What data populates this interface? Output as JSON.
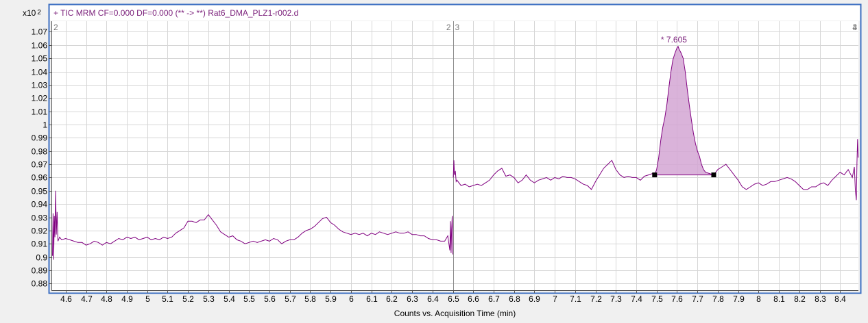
{
  "chart_data": {
    "type": "line",
    "title": "+ TIC MRM CF=0.000 DF=0.000 (** -> **) Rat6_DMA_PLZ1-r002.d",
    "xlabel": "Counts vs. Acquisition Time (min)",
    "y_multiplier": "x10",
    "y_multiplier_exp": "2",
    "xlim": [
      4.53,
      8.49
    ],
    "ylim": [
      0.875,
      1.078
    ],
    "x_ticks": [
      4.6,
      4.7,
      4.8,
      4.9,
      5.0,
      5.1,
      5.2,
      5.3,
      5.4,
      5.5,
      5.6,
      5.7,
      5.8,
      5.9,
      6.0,
      6.1,
      6.2,
      6.3,
      6.4,
      6.5,
      6.6,
      6.7,
      6.8,
      6.9,
      7.0,
      7.1,
      7.2,
      7.3,
      7.4,
      7.5,
      7.6,
      7.7,
      7.8,
      7.9,
      8.0,
      8.1,
      8.2,
      8.3,
      8.4
    ],
    "x_tick_labels": [
      "4.6",
      "4.7",
      "4.8",
      "4.9",
      "5",
      "5.1",
      "5.2",
      "5.3",
      "5.4",
      "5.5",
      "5.6",
      "5.7",
      "5.8",
      "5.9",
      "6",
      "6.1",
      "6.2",
      "6.3",
      "6.4",
      "6.5",
      "6.6",
      "6.7",
      "6.8",
      "6.9",
      "7",
      "7.1",
      "7.2",
      "7.3",
      "7.4",
      "7.5",
      "7.6",
      "7.7",
      "7.8",
      "7.9",
      "8",
      "8.1",
      "8.2",
      "8.3",
      "8.4"
    ],
    "y_ticks": [
      0.88,
      0.89,
      0.9,
      0.91,
      0.92,
      0.93,
      0.94,
      0.95,
      0.96,
      0.97,
      0.98,
      0.99,
      1.0,
      1.01,
      1.02,
      1.03,
      1.04,
      1.05,
      1.06,
      1.07
    ],
    "y_tick_labels": [
      "0.88",
      "0.89",
      "0.9",
      "0.91",
      "0.92",
      "0.93",
      "0.94",
      "0.95",
      "0.96",
      "0.97",
      "0.98",
      "0.99",
      "1",
      "1.01",
      "1.02",
      "1.03",
      "1.04",
      "1.05",
      "1.06",
      "1.07"
    ],
    "grid": true,
    "segment_divider_x": 6.5,
    "segment_markers": [
      {
        "x": 4.53,
        "label": "2"
      },
      {
        "x": 6.5,
        "label": "2",
        "side": "left"
      },
      {
        "x": 6.5,
        "label": "3",
        "side": "right"
      },
      {
        "x": 8.49,
        "label": "3"
      },
      {
        "x": 8.49,
        "label": "4"
      }
    ],
    "peak": {
      "label": "* 7.605",
      "apex_x": 7.605,
      "apex_y": 1.059,
      "start_x": 7.49,
      "start_y": 0.962,
      "end_x": 7.78,
      "end_y": 0.962
    },
    "series": [
      {
        "color": "#800080",
        "fill": "#d4a6d4",
        "points": [
          [
            4.535,
            0.901
          ],
          [
            4.538,
            0.933
          ],
          [
            4.541,
            0.898
          ],
          [
            4.544,
            0.931
          ],
          [
            4.547,
            0.915
          ],
          [
            4.551,
            0.95
          ],
          [
            4.554,
            0.917
          ],
          [
            4.558,
            0.934
          ],
          [
            4.562,
            0.912
          ],
          [
            4.57,
            0.915
          ],
          [
            4.58,
            0.913
          ],
          [
            4.6,
            0.914
          ],
          [
            4.62,
            0.913
          ],
          [
            4.64,
            0.912
          ],
          [
            4.66,
            0.911
          ],
          [
            4.68,
            0.911
          ],
          [
            4.7,
            0.909
          ],
          [
            4.72,
            0.91
          ],
          [
            4.74,
            0.912
          ],
          [
            4.76,
            0.911
          ],
          [
            4.78,
            0.909
          ],
          [
            4.8,
            0.911
          ],
          [
            4.82,
            0.91
          ],
          [
            4.84,
            0.912
          ],
          [
            4.86,
            0.914
          ],
          [
            4.88,
            0.913
          ],
          [
            4.9,
            0.915
          ],
          [
            4.92,
            0.914
          ],
          [
            4.94,
            0.915
          ],
          [
            4.96,
            0.913
          ],
          [
            4.98,
            0.914
          ],
          [
            5.0,
            0.915
          ],
          [
            5.02,
            0.913
          ],
          [
            5.04,
            0.914
          ],
          [
            5.06,
            0.913
          ],
          [
            5.08,
            0.915
          ],
          [
            5.1,
            0.914
          ],
          [
            5.12,
            0.915
          ],
          [
            5.14,
            0.918
          ],
          [
            5.16,
            0.92
          ],
          [
            5.18,
            0.922
          ],
          [
            5.2,
            0.927
          ],
          [
            5.22,
            0.927
          ],
          [
            5.24,
            0.926
          ],
          [
            5.26,
            0.928
          ],
          [
            5.28,
            0.928
          ],
          [
            5.3,
            0.932
          ],
          [
            5.32,
            0.928
          ],
          [
            5.34,
            0.924
          ],
          [
            5.36,
            0.919
          ],
          [
            5.38,
            0.917
          ],
          [
            5.4,
            0.915
          ],
          [
            5.42,
            0.916
          ],
          [
            5.44,
            0.913
          ],
          [
            5.46,
            0.912
          ],
          [
            5.48,
            0.91
          ],
          [
            5.5,
            0.911
          ],
          [
            5.52,
            0.912
          ],
          [
            5.54,
            0.911
          ],
          [
            5.56,
            0.912
          ],
          [
            5.58,
            0.913
          ],
          [
            5.6,
            0.912
          ],
          [
            5.62,
            0.914
          ],
          [
            5.64,
            0.913
          ],
          [
            5.66,
            0.91
          ],
          [
            5.68,
            0.912
          ],
          [
            5.7,
            0.913
          ],
          [
            5.72,
            0.913
          ],
          [
            5.74,
            0.915
          ],
          [
            5.76,
            0.918
          ],
          [
            5.78,
            0.92
          ],
          [
            5.8,
            0.921
          ],
          [
            5.82,
            0.923
          ],
          [
            5.84,
            0.926
          ],
          [
            5.86,
            0.929
          ],
          [
            5.88,
            0.93
          ],
          [
            5.9,
            0.926
          ],
          [
            5.92,
            0.924
          ],
          [
            5.94,
            0.921
          ],
          [
            5.96,
            0.919
          ],
          [
            5.98,
            0.918
          ],
          [
            6.0,
            0.917
          ],
          [
            6.02,
            0.918
          ],
          [
            6.04,
            0.917
          ],
          [
            6.06,
            0.918
          ],
          [
            6.08,
            0.916
          ],
          [
            6.1,
            0.918
          ],
          [
            6.12,
            0.917
          ],
          [
            6.14,
            0.919
          ],
          [
            6.16,
            0.918
          ],
          [
            6.18,
            0.917
          ],
          [
            6.2,
            0.918
          ],
          [
            6.22,
            0.919
          ],
          [
            6.24,
            0.918
          ],
          [
            6.26,
            0.918
          ],
          [
            6.28,
            0.919
          ],
          [
            6.3,
            0.917
          ],
          [
            6.32,
            0.917
          ],
          [
            6.34,
            0.916
          ],
          [
            6.36,
            0.916
          ],
          [
            6.38,
            0.914
          ],
          [
            6.4,
            0.913
          ],
          [
            6.42,
            0.913
          ],
          [
            6.44,
            0.912
          ],
          [
            6.46,
            0.912
          ],
          [
            6.475,
            0.916
          ],
          [
            6.485,
            0.905
          ],
          [
            6.488,
            0.927
          ],
          [
            6.491,
            0.903
          ],
          [
            6.494,
            0.921
          ],
          [
            6.497,
            0.931
          ],
          [
            6.5,
            0.902
          ],
          [
            6.502,
            0.96
          ],
          [
            6.505,
            0.973
          ],
          [
            6.508,
            0.962
          ],
          [
            6.512,
            0.965
          ],
          [
            6.516,
            0.957
          ],
          [
            6.52,
            0.958
          ],
          [
            6.54,
            0.954
          ],
          [
            6.56,
            0.955
          ],
          [
            6.58,
            0.953
          ],
          [
            6.6,
            0.954
          ],
          [
            6.62,
            0.955
          ],
          [
            6.64,
            0.954
          ],
          [
            6.66,
            0.956
          ],
          [
            6.68,
            0.958
          ],
          [
            6.7,
            0.962
          ],
          [
            6.72,
            0.965
          ],
          [
            6.74,
            0.967
          ],
          [
            6.76,
            0.961
          ],
          [
            6.78,
            0.962
          ],
          [
            6.8,
            0.96
          ],
          [
            6.82,
            0.956
          ],
          [
            6.84,
            0.958
          ],
          [
            6.86,
            0.962
          ],
          [
            6.88,
            0.958
          ],
          [
            6.9,
            0.956
          ],
          [
            6.92,
            0.958
          ],
          [
            6.94,
            0.959
          ],
          [
            6.96,
            0.96
          ],
          [
            6.98,
            0.958
          ],
          [
            7.0,
            0.96
          ],
          [
            7.02,
            0.959
          ],
          [
            7.04,
            0.961
          ],
          [
            7.06,
            0.96
          ],
          [
            7.08,
            0.96
          ],
          [
            7.1,
            0.959
          ],
          [
            7.12,
            0.957
          ],
          [
            7.14,
            0.955
          ],
          [
            7.16,
            0.954
          ],
          [
            7.18,
            0.951
          ],
          [
            7.2,
            0.957
          ],
          [
            7.22,
            0.962
          ],
          [
            7.24,
            0.967
          ],
          [
            7.26,
            0.97
          ],
          [
            7.28,
            0.973
          ],
          [
            7.3,
            0.966
          ],
          [
            7.32,
            0.962
          ],
          [
            7.34,
            0.96
          ],
          [
            7.36,
            0.961
          ],
          [
            7.38,
            0.96
          ],
          [
            7.4,
            0.96
          ],
          [
            7.42,
            0.958
          ],
          [
            7.44,
            0.961
          ],
          [
            7.46,
            0.962
          ],
          [
            7.48,
            0.963
          ],
          [
            7.49,
            0.962
          ],
          [
            7.5,
            0.966
          ],
          [
            7.51,
            0.975
          ],
          [
            7.52,
            0.988
          ],
          [
            7.53,
            0.998
          ],
          [
            7.54,
            1.005
          ],
          [
            7.55,
            1.015
          ],
          [
            7.56,
            1.028
          ],
          [
            7.57,
            1.04
          ],
          [
            7.58,
            1.049
          ],
          [
            7.59,
            1.054
          ],
          [
            7.6,
            1.058
          ],
          [
            7.605,
            1.059
          ],
          [
            7.61,
            1.057
          ],
          [
            7.62,
            1.054
          ],
          [
            7.63,
            1.05
          ],
          [
            7.64,
            1.04
          ],
          [
            7.65,
            1.027
          ],
          [
            7.66,
            1.015
          ],
          [
            7.67,
            1.004
          ],
          [
            7.68,
            0.994
          ],
          [
            7.69,
            0.986
          ],
          [
            7.7,
            0.98
          ],
          [
            7.71,
            0.976
          ],
          [
            7.72,
            0.97
          ],
          [
            7.73,
            0.966
          ],
          [
            7.74,
            0.964
          ],
          [
            7.76,
            0.963
          ],
          [
            7.78,
            0.962
          ],
          [
            7.8,
            0.966
          ],
          [
            7.82,
            0.968
          ],
          [
            7.84,
            0.97
          ],
          [
            7.86,
            0.966
          ],
          [
            7.88,
            0.962
          ],
          [
            7.9,
            0.958
          ],
          [
            7.92,
            0.953
          ],
          [
            7.94,
            0.951
          ],
          [
            7.96,
            0.953
          ],
          [
            7.98,
            0.955
          ],
          [
            8.0,
            0.956
          ],
          [
            8.02,
            0.954
          ],
          [
            8.04,
            0.955
          ],
          [
            8.06,
            0.957
          ],
          [
            8.08,
            0.957
          ],
          [
            8.1,
            0.958
          ],
          [
            8.12,
            0.959
          ],
          [
            8.14,
            0.96
          ],
          [
            8.16,
            0.959
          ],
          [
            8.18,
            0.957
          ],
          [
            8.2,
            0.954
          ],
          [
            8.22,
            0.951
          ],
          [
            8.24,
            0.951
          ],
          [
            8.26,
            0.953
          ],
          [
            8.28,
            0.953
          ],
          [
            8.3,
            0.955
          ],
          [
            8.32,
            0.956
          ],
          [
            8.34,
            0.954
          ],
          [
            8.36,
            0.958
          ],
          [
            8.38,
            0.961
          ],
          [
            8.4,
            0.964
          ],
          [
            8.42,
            0.962
          ],
          [
            8.44,
            0.966
          ],
          [
            8.46,
            0.96
          ],
          [
            8.47,
            0.968
          ],
          [
            8.475,
            0.951
          ],
          [
            8.48,
            0.943
          ],
          [
            8.483,
            0.971
          ],
          [
            8.486,
            0.989
          ],
          [
            8.489,
            0.975
          ]
        ]
      }
    ]
  }
}
